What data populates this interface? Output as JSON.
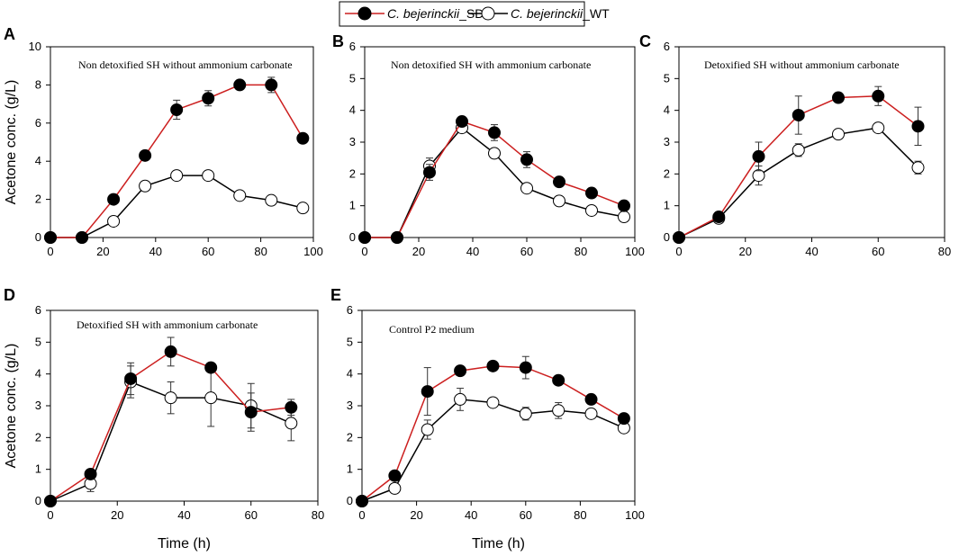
{
  "legend": {
    "sdr": {
      "italic": "C. bejerinckii",
      "suffix": "_SDR"
    },
    "wt": {
      "italic": "C. bejerinckii",
      "suffix": "_WT"
    }
  },
  "colors": {
    "sdr_line": "#cc1f1f",
    "wt_line": "#000000",
    "sdr_marker": "#000000",
    "wt_marker": "#ffffff"
  },
  "chart_data": [
    {
      "panel": "A",
      "type": "line",
      "title": "Non detoxified SH without ammonium carbonate",
      "ylabel": "Acetone conc. (g/L)",
      "xlabel": "",
      "xlim": [
        0,
        100
      ],
      "ylim": [
        0,
        10
      ],
      "xticks": [
        0,
        20,
        40,
        60,
        80,
        100
      ],
      "yticks": [
        0,
        2,
        4,
        6,
        8,
        10
      ],
      "series": [
        {
          "name": "C. bejerinckii_SDR",
          "x": [
            0,
            12,
            24,
            36,
            48,
            60,
            72,
            84,
            96
          ],
          "y": [
            0,
            0,
            2.0,
            4.3,
            6.7,
            7.3,
            8.0,
            8.0,
            5.2
          ],
          "err": [
            0,
            0,
            0.1,
            0.1,
            0.5,
            0.4,
            0.1,
            0.4,
            0.1
          ]
        },
        {
          "name": "C. bejerinckii_WT",
          "x": [
            0,
            12,
            24,
            36,
            48,
            60,
            72,
            84,
            96
          ],
          "y": [
            0,
            0,
            0.85,
            2.7,
            3.25,
            3.25,
            2.2,
            1.95,
            1.55
          ],
          "err": [
            0,
            0,
            0.15,
            0.1,
            0.1,
            0.1,
            0.1,
            0.1,
            0.1
          ]
        }
      ]
    },
    {
      "panel": "B",
      "type": "line",
      "title": "Non detoxified SH with ammonium carbonate",
      "ylabel": "",
      "xlabel": "",
      "xlim": [
        0,
        100
      ],
      "ylim": [
        0,
        6
      ],
      "xticks": [
        0,
        20,
        40,
        60,
        80,
        100
      ],
      "yticks": [
        0,
        1,
        2,
        3,
        4,
        5,
        6
      ],
      "series": [
        {
          "name": "C. bejerinckii_SDR",
          "x": [
            0,
            12,
            24,
            36,
            48,
            60,
            72,
            84,
            96
          ],
          "y": [
            0,
            0,
            2.05,
            3.65,
            3.3,
            2.45,
            1.75,
            1.4,
            1.0
          ],
          "err": [
            0,
            0,
            0.25,
            0.1,
            0.25,
            0.25,
            0.1,
            0.1,
            0.1
          ]
        },
        {
          "name": "C. bejerinckii_WT",
          "x": [
            0,
            12,
            24,
            36,
            48,
            60,
            72,
            84,
            96
          ],
          "y": [
            0,
            0,
            2.25,
            3.45,
            2.65,
            1.55,
            1.15,
            0.85,
            0.65
          ],
          "err": [
            0,
            0,
            0.25,
            0.1,
            0.1,
            0.1,
            0.1,
            0.1,
            0.1
          ]
        }
      ]
    },
    {
      "panel": "C",
      "type": "line",
      "title": "Detoxified SH without ammonium carbonate",
      "ylabel": "",
      "xlabel": "",
      "xlim": [
        0,
        80
      ],
      "ylim": [
        0,
        6
      ],
      "xticks": [
        0,
        20,
        40,
        60,
        80
      ],
      "yticks": [
        0,
        1,
        2,
        3,
        4,
        5,
        6
      ],
      "series": [
        {
          "name": "C. bejerinckii_SDR",
          "x": [
            0,
            12,
            24,
            36,
            48,
            60,
            72
          ],
          "y": [
            0,
            0.65,
            2.55,
            3.85,
            4.4,
            4.45,
            3.5
          ],
          "err": [
            0,
            0.1,
            0.45,
            0.6,
            0.1,
            0.3,
            0.6
          ]
        },
        {
          "name": "C. bejerinckii_WT",
          "x": [
            0,
            12,
            24,
            36,
            48,
            60,
            72
          ],
          "y": [
            0,
            0.6,
            1.95,
            2.75,
            3.25,
            3.45,
            2.2
          ],
          "err": [
            0,
            0.1,
            0.3,
            0.2,
            0.15,
            0.1,
            0.2
          ]
        }
      ]
    },
    {
      "panel": "D",
      "type": "line",
      "title": "Detoxified SH with ammonium carbonate",
      "ylabel": "Acetone conc. (g/L)",
      "xlabel": "Time (h)",
      "xlim": [
        0,
        80
      ],
      "ylim": [
        0,
        6
      ],
      "xticks": [
        0,
        20,
        40,
        60,
        80
      ],
      "yticks": [
        0,
        1,
        2,
        3,
        4,
        5,
        6
      ],
      "series": [
        {
          "name": "C. bejerinckii_SDR",
          "x": [
            0,
            12,
            24,
            36,
            48,
            60,
            72
          ],
          "y": [
            0,
            0.85,
            3.85,
            4.7,
            4.2,
            2.8,
            2.95
          ],
          "err": [
            0,
            0.1,
            0.5,
            0.45,
            0.1,
            0.6,
            0.25
          ]
        },
        {
          "name": "C. bejerinckii_WT",
          "x": [
            0,
            12,
            24,
            36,
            48,
            60,
            72
          ],
          "y": [
            0,
            0.55,
            3.75,
            3.25,
            3.25,
            3.0,
            2.45
          ],
          "err": [
            0,
            0.25,
            0.5,
            0.5,
            0.9,
            0.7,
            0.55
          ]
        }
      ]
    },
    {
      "panel": "E",
      "type": "line",
      "title": "Control P2 medium",
      "ylabel": "",
      "xlabel": "Time (h)",
      "xlim": [
        0,
        100
      ],
      "ylim": [
        0,
        6
      ],
      "xticks": [
        0,
        20,
        40,
        60,
        80,
        100
      ],
      "yticks": [
        0,
        1,
        2,
        3,
        4,
        5,
        6
      ],
      "series": [
        {
          "name": "C. bejerinckii_SDR",
          "x": [
            0,
            12,
            24,
            36,
            48,
            60,
            72,
            84,
            96
          ],
          "y": [
            0,
            0.8,
            3.45,
            4.1,
            4.25,
            4.2,
            3.8,
            3.2,
            2.6
          ],
          "err": [
            0,
            0.1,
            0.75,
            0.1,
            0.1,
            0.35,
            0.1,
            0.1,
            0.1
          ]
        },
        {
          "name": "C. bejerinckii_WT",
          "x": [
            0,
            12,
            24,
            36,
            48,
            60,
            72,
            84,
            96
          ],
          "y": [
            0,
            0.4,
            2.25,
            3.2,
            3.1,
            2.75,
            2.85,
            2.75,
            2.3
          ],
          "err": [
            0,
            0.1,
            0.3,
            0.35,
            0.1,
            0.2,
            0.25,
            0.1,
            0.1
          ]
        }
      ]
    }
  ]
}
